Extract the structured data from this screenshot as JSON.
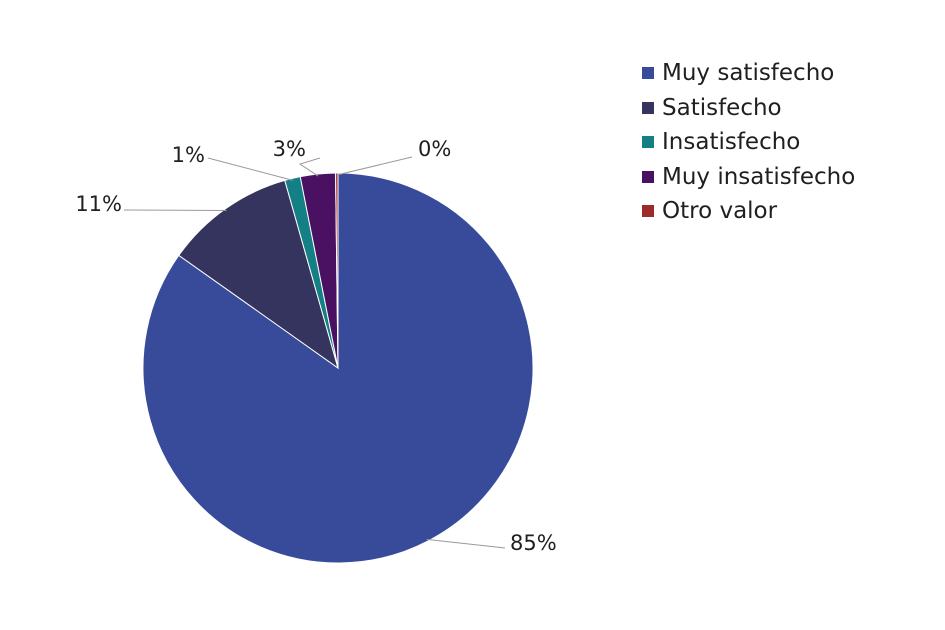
{
  "chart_data": {
    "type": "pie",
    "title": "",
    "categories": [
      "Muy satisfecho",
      "Satisfecho",
      "Insatisfecho",
      "Muy insatisfecho",
      "Otro valor"
    ],
    "values": [
      85,
      11,
      1,
      3,
      0
    ],
    "data_labels": [
      "85%",
      "11%",
      "1%",
      "3%",
      "0%"
    ],
    "colors": [
      "#374B9A",
      "#35345E",
      "#148085",
      "#4A1061",
      "#9E2B2B"
    ],
    "legend_position": "top-right",
    "start_angle_deg": 0,
    "direction": "clockwise"
  }
}
